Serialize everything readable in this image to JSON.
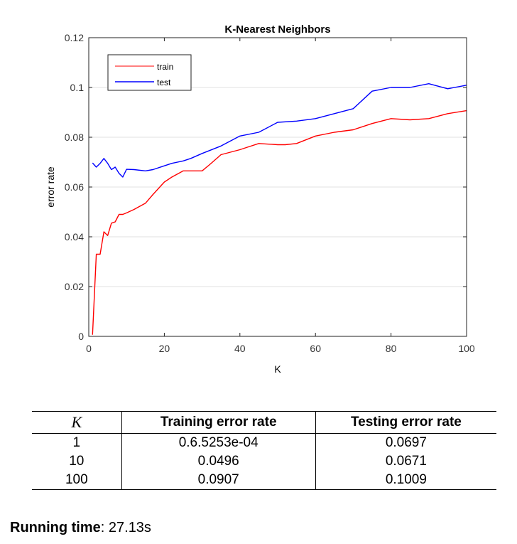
{
  "chart_data": {
    "type": "line",
    "title": "K-Nearest Neighbors",
    "xlabel": "K",
    "ylabel": "error rate",
    "xlim": [
      0,
      100
    ],
    "ylim": [
      0,
      0.12
    ],
    "xticks": [
      0,
      20,
      40,
      60,
      80,
      100
    ],
    "yticks": [
      0,
      0.02,
      0.04,
      0.06,
      0.08,
      0.1,
      0.12
    ],
    "grid": "horizontal",
    "legend_position": "top-left",
    "series": [
      {
        "name": "train",
        "color": "#ff0000",
        "x": [
          1,
          2,
          3,
          4,
          5,
          6,
          7,
          8,
          9,
          10,
          12,
          15,
          17,
          20,
          22,
          25,
          27,
          30,
          32,
          35,
          40,
          42,
          45,
          50,
          52,
          55,
          60,
          65,
          70,
          75,
          80,
          85,
          90,
          95,
          100
        ],
        "y": [
          0.00065,
          0.033,
          0.033,
          0.042,
          0.0405,
          0.0455,
          0.046,
          0.049,
          0.049,
          0.0496,
          0.051,
          0.0535,
          0.057,
          0.062,
          0.064,
          0.0665,
          0.0665,
          0.0665,
          0.069,
          0.073,
          0.075,
          0.076,
          0.0775,
          0.077,
          0.077,
          0.0775,
          0.0805,
          0.082,
          0.083,
          0.0855,
          0.0875,
          0.087,
          0.0875,
          0.0895,
          0.0907
        ]
      },
      {
        "name": "test",
        "color": "#0000ff",
        "x": [
          1,
          2,
          3,
          4,
          5,
          6,
          7,
          8,
          9,
          10,
          12,
          15,
          17,
          20,
          22,
          25,
          27,
          30,
          35,
          40,
          45,
          50,
          55,
          60,
          65,
          70,
          75,
          80,
          85,
          90,
          95,
          100
        ],
        "y": [
          0.0697,
          0.068,
          0.0695,
          0.0715,
          0.0695,
          0.067,
          0.068,
          0.0655,
          0.064,
          0.0671,
          0.067,
          0.0665,
          0.067,
          0.0685,
          0.0695,
          0.0705,
          0.0715,
          0.0735,
          0.0765,
          0.0805,
          0.082,
          0.086,
          0.0865,
          0.0875,
          0.0895,
          0.0915,
          0.0985,
          0.1,
          0.1,
          0.1015,
          0.0995,
          0.1009
        ]
      }
    ]
  },
  "table": {
    "headers": [
      "K",
      "Training error rate",
      "Testing error rate"
    ],
    "rows": [
      [
        "1",
        "0.6.5253e-04",
        "0.0697"
      ],
      [
        "10",
        "0.0496",
        "0.0671"
      ],
      [
        "100",
        "0.0907",
        "0.1009"
      ]
    ]
  },
  "running_time": {
    "label": "Running time",
    "sep": ":",
    "value": " 27.13s"
  }
}
